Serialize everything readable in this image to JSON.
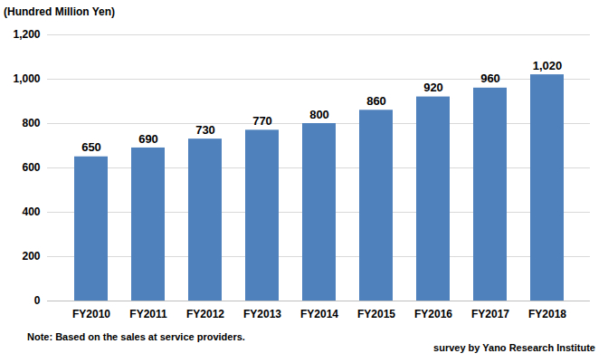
{
  "chart_data": {
    "type": "bar",
    "ylabel": "(Hundred Million Yen)",
    "categories": [
      "FY2010",
      "FY2011",
      "FY2012",
      "FY2013",
      "FY2014",
      "FY2015",
      "FY2016",
      "FY2017",
      "FY2018"
    ],
    "values": [
      650,
      690,
      730,
      770,
      800,
      860,
      920,
      960,
      1020
    ],
    "value_labels": [
      "650",
      "690",
      "730",
      "770",
      "800",
      "860",
      "920",
      "960",
      "1,020"
    ],
    "color": "#4f81bd",
    "ylim": [
      0,
      1200
    ],
    "yticks": [
      0,
      200,
      400,
      600,
      800,
      {
        "value": 1000,
        "label": "1,000"
      },
      {
        "value": 1200,
        "label": "1,200"
      }
    ],
    "grid": true,
    "data_labels": true,
    "note": "Note: Based on the sales at service providers.",
    "source": "survey by Yano Research Institute"
  }
}
